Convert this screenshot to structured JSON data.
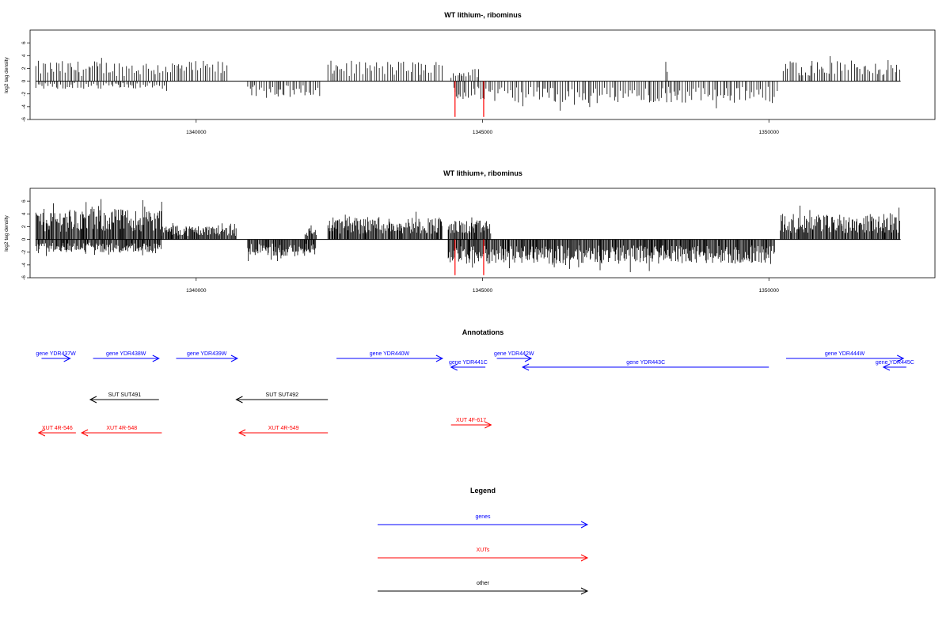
{
  "chart_data": [
    {
      "type": "bar",
      "title": "WT lithium-, ribominus",
      "ylabel": "log2 tag density",
      "ylim": [
        -6,
        8
      ],
      "yticks": [
        -6,
        -4,
        -2,
        0,
        2,
        4,
        6
      ],
      "xlim": [
        1337100,
        1352900
      ],
      "xticks": [
        1340000,
        1345000,
        1350000
      ],
      "density": "sparse",
      "segments": [
        {
          "from": 1337200,
          "to": 1340550,
          "strand": "+",
          "amp": 3.2
        },
        {
          "from": 1337200,
          "to": 1339500,
          "strand": "-",
          "amp": 1.2
        },
        {
          "from": 1340900,
          "to": 1342200,
          "strand": "-",
          "amp": 2.5
        },
        {
          "from": 1342300,
          "to": 1344300,
          "strand": "+",
          "amp": 3.2
        },
        {
          "from": 1344450,
          "to": 1344950,
          "strand": "+",
          "amp": 2.0
        },
        {
          "from": 1344500,
          "to": 1350150,
          "strand": "-",
          "amp": 3.5
        },
        {
          "from": 1348200,
          "to": 1348250,
          "strand": "+",
          "amp": 2.6
        },
        {
          "from": 1350250,
          "to": 1352300,
          "strand": "+",
          "amp": 3.3
        }
      ],
      "highlights": [
        {
          "x": 1344520,
          "y": -5.6,
          "color": "#ff0000"
        },
        {
          "x": 1345020,
          "y": -5.6,
          "color": "#ff0000"
        }
      ]
    },
    {
      "type": "bar",
      "title": "WT lithium+, ribominus",
      "ylabel": "log2 tag density",
      "ylim": [
        -6,
        8
      ],
      "yticks": [
        -6,
        -4,
        -2,
        0,
        2,
        4,
        6
      ],
      "xlim": [
        1337100,
        1352900
      ],
      "xticks": [
        1340000,
        1345000,
        1350000
      ],
      "density": "dense",
      "segments": [
        {
          "from": 1337200,
          "to": 1339400,
          "strand": "+",
          "amp": 4.8
        },
        {
          "from": 1339400,
          "to": 1340700,
          "strand": "+",
          "amp": 2.2
        },
        {
          "from": 1337200,
          "to": 1339400,
          "strand": "-",
          "amp": 2.0
        },
        {
          "from": 1340900,
          "to": 1342100,
          "strand": "-",
          "amp": 2.6
        },
        {
          "from": 1341900,
          "to": 1342100,
          "strand": "+",
          "amp": 1.8
        },
        {
          "from": 1342300,
          "to": 1344300,
          "strand": "+",
          "amp": 3.5
        },
        {
          "from": 1344400,
          "to": 1345150,
          "strand": "+",
          "amp": 3.0
        },
        {
          "from": 1344400,
          "to": 1350100,
          "strand": "-",
          "amp": 3.8
        },
        {
          "from": 1350200,
          "to": 1352300,
          "strand": "+",
          "amp": 4.0
        }
      ],
      "highlights": [
        {
          "x": 1344520,
          "y": -5.6,
          "color": "#ff0000"
        },
        {
          "x": 1345020,
          "y": -5.6,
          "color": "#ff0000"
        }
      ]
    }
  ],
  "annotations": {
    "title": "Annotations",
    "features": [
      {
        "label": "gene YDR437W",
        "type": "gene",
        "start": 1337300,
        "end": 1337800,
        "dir": "right"
      },
      {
        "label": "gene YDR438W",
        "type": "gene",
        "start": 1338200,
        "end": 1339350,
        "dir": "right"
      },
      {
        "label": "gene YDR439W",
        "type": "gene",
        "start": 1339650,
        "end": 1340720,
        "dir": "right"
      },
      {
        "label": "gene YDR440W",
        "type": "gene",
        "start": 1342450,
        "end": 1344300,
        "dir": "right"
      },
      {
        "label": "gene YDR441C",
        "type": "gene",
        "start": 1344450,
        "end": 1345050,
        "dir": "left"
      },
      {
        "label": "gene YDR442W",
        "type": "gene",
        "start": 1345250,
        "end": 1345850,
        "dir": "right"
      },
      {
        "label": "gene YDR443C",
        "type": "gene",
        "start": 1345700,
        "end": 1350000,
        "dir": "left"
      },
      {
        "label": "gene YDR444W",
        "type": "gene",
        "start": 1350300,
        "end": 1352350,
        "dir": "right"
      },
      {
        "label": "gene YDR445C",
        "type": "gene",
        "start": 1352000,
        "end": 1352400,
        "dir": "left"
      },
      {
        "label": "SUT SUT491",
        "type": "other",
        "start": 1338150,
        "end": 1339350,
        "dir": "left"
      },
      {
        "label": "SUT SUT492",
        "type": "other",
        "start": 1340700,
        "end": 1342300,
        "dir": "left"
      },
      {
        "label": "XUT 4F-617",
        "type": "xut",
        "start": 1344450,
        "end": 1345150,
        "dir": "right"
      },
      {
        "label": "XUT 4R-546",
        "type": "xut",
        "start": 1337250,
        "end": 1337900,
        "dir": "left"
      },
      {
        "label": "XUT 4R-548",
        "type": "xut",
        "start": 1338000,
        "end": 1339400,
        "dir": "left"
      },
      {
        "label": "XUT 4R-549",
        "type": "xut",
        "start": 1340750,
        "end": 1342300,
        "dir": "left"
      }
    ]
  },
  "legend": {
    "title": "Legend",
    "items": [
      {
        "label": "genes",
        "color": "#0000ff"
      },
      {
        "label": "XUTs",
        "color": "#ff0000"
      },
      {
        "label": "other",
        "color": "#000000"
      }
    ]
  },
  "colors": {
    "gene": "#0000ff",
    "xut": "#ff0000",
    "other": "#000000"
  }
}
